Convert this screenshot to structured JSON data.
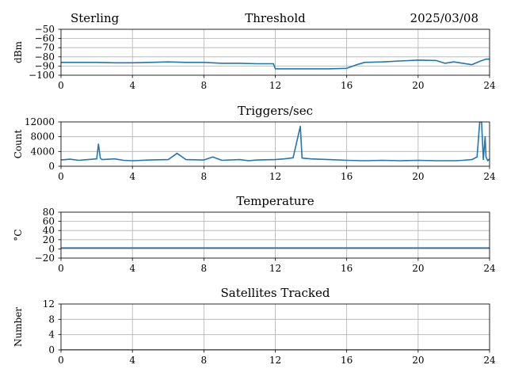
{
  "header": {
    "station": "Sterling",
    "title": "Threshold",
    "date": "2025/03/08"
  },
  "colors": {
    "series": "#1f77b4",
    "grid": "#b0b0b0",
    "axes": "#000000"
  },
  "chart_data": [
    {
      "type": "line",
      "title": "Threshold",
      "xlabel": "",
      "ylabel": "dBm",
      "xlim": [
        0,
        24
      ],
      "ylim": [
        -100,
        -50
      ],
      "xticks": [
        0,
        4,
        8,
        12,
        16,
        20,
        24
      ],
      "yticks": [
        -100,
        -90,
        -80,
        -70,
        -60,
        -50
      ],
      "ytick_labels": [
        "−100",
        "−90",
        "−80",
        "−70",
        "−60",
        "−50"
      ],
      "grid": true,
      "series": [
        {
          "x": [
            0,
            1,
            2,
            3,
            4,
            5,
            6,
            7,
            8,
            9,
            10,
            11,
            11.9,
            12,
            13,
            14,
            15,
            16,
            16.5,
            17,
            18,
            19,
            20,
            21,
            21.5,
            22,
            22.5,
            23,
            23.5,
            23.8,
            24
          ],
          "y": [
            -86,
            -86,
            -86,
            -86.5,
            -86.5,
            -86,
            -85.5,
            -86,
            -86,
            -87,
            -87,
            -87.5,
            -87.5,
            -93,
            -93,
            -93,
            -93,
            -92.5,
            -89,
            -86,
            -85.5,
            -84.5,
            -83.5,
            -84,
            -87,
            -85.5,
            -87,
            -88.5,
            -84.5,
            -82.5,
            -82.5
          ]
        }
      ]
    },
    {
      "type": "line",
      "title": "Triggers/sec",
      "xlabel": "",
      "ylabel": "Count",
      "xlim": [
        0,
        24
      ],
      "ylim": [
        0,
        12000
      ],
      "xticks": [
        0,
        4,
        8,
        12,
        16,
        20,
        24
      ],
      "yticks": [
        0,
        4000,
        8000,
        12000
      ],
      "ytick_labels": [
        "0",
        "4000",
        "8000",
        "12000"
      ],
      "grid": true,
      "series": [
        {
          "x": [
            0,
            0.5,
            1,
            1.5,
            2,
            2.1,
            2.2,
            2.3,
            3,
            3.5,
            4,
            5,
            6,
            6.5,
            7,
            8,
            8.5,
            9,
            10,
            10.5,
            11,
            12,
            12.5,
            13,
            13.4,
            13.5,
            14,
            15,
            16,
            17,
            18,
            19,
            20,
            21,
            22,
            22.5,
            23,
            23.3,
            23.45,
            23.55,
            23.65,
            23.75,
            23.8,
            23.9,
            24
          ],
          "y": [
            1700,
            1900,
            1600,
            1800,
            2000,
            6000,
            2200,
            1800,
            2000,
            1600,
            1500,
            1700,
            1800,
            3500,
            1800,
            1700,
            2500,
            1600,
            1800,
            1500,
            1700,
            1800,
            2000,
            2300,
            10800,
            2200,
            2000,
            1800,
            1600,
            1500,
            1600,
            1500,
            1600,
            1500,
            1500,
            1600,
            1800,
            2500,
            12000,
            12000,
            1800,
            8000,
            2500,
            1500,
            2000
          ]
        }
      ]
    },
    {
      "type": "line",
      "title": "Temperature",
      "xlabel": "",
      "ylabel": "°C",
      "xlim": [
        0,
        24
      ],
      "ylim": [
        -20,
        80
      ],
      "xticks": [
        0,
        4,
        8,
        12,
        16,
        20,
        24
      ],
      "yticks": [
        -20,
        0,
        20,
        40,
        60,
        80
      ],
      "ytick_labels": [
        "−20",
        "0",
        "20",
        "40",
        "60",
        "80"
      ],
      "grid": true,
      "series": [
        {
          "x": [
            0,
            24
          ],
          "y": [
            2,
            2
          ]
        }
      ]
    },
    {
      "type": "line",
      "title": "Satellites Tracked",
      "xlabel": "",
      "ylabel": "Number",
      "xlim": [
        0,
        24
      ],
      "ylim": [
        0,
        12
      ],
      "xticks": [
        0,
        4,
        8,
        12,
        16,
        20,
        24
      ],
      "yticks": [
        0,
        4,
        8,
        12
      ],
      "ytick_labels": [
        "0",
        "4",
        "8",
        "12"
      ],
      "grid": true,
      "series": [
        {
          "x": [
            0,
            24
          ],
          "y": [
            0,
            0
          ]
        }
      ]
    }
  ]
}
